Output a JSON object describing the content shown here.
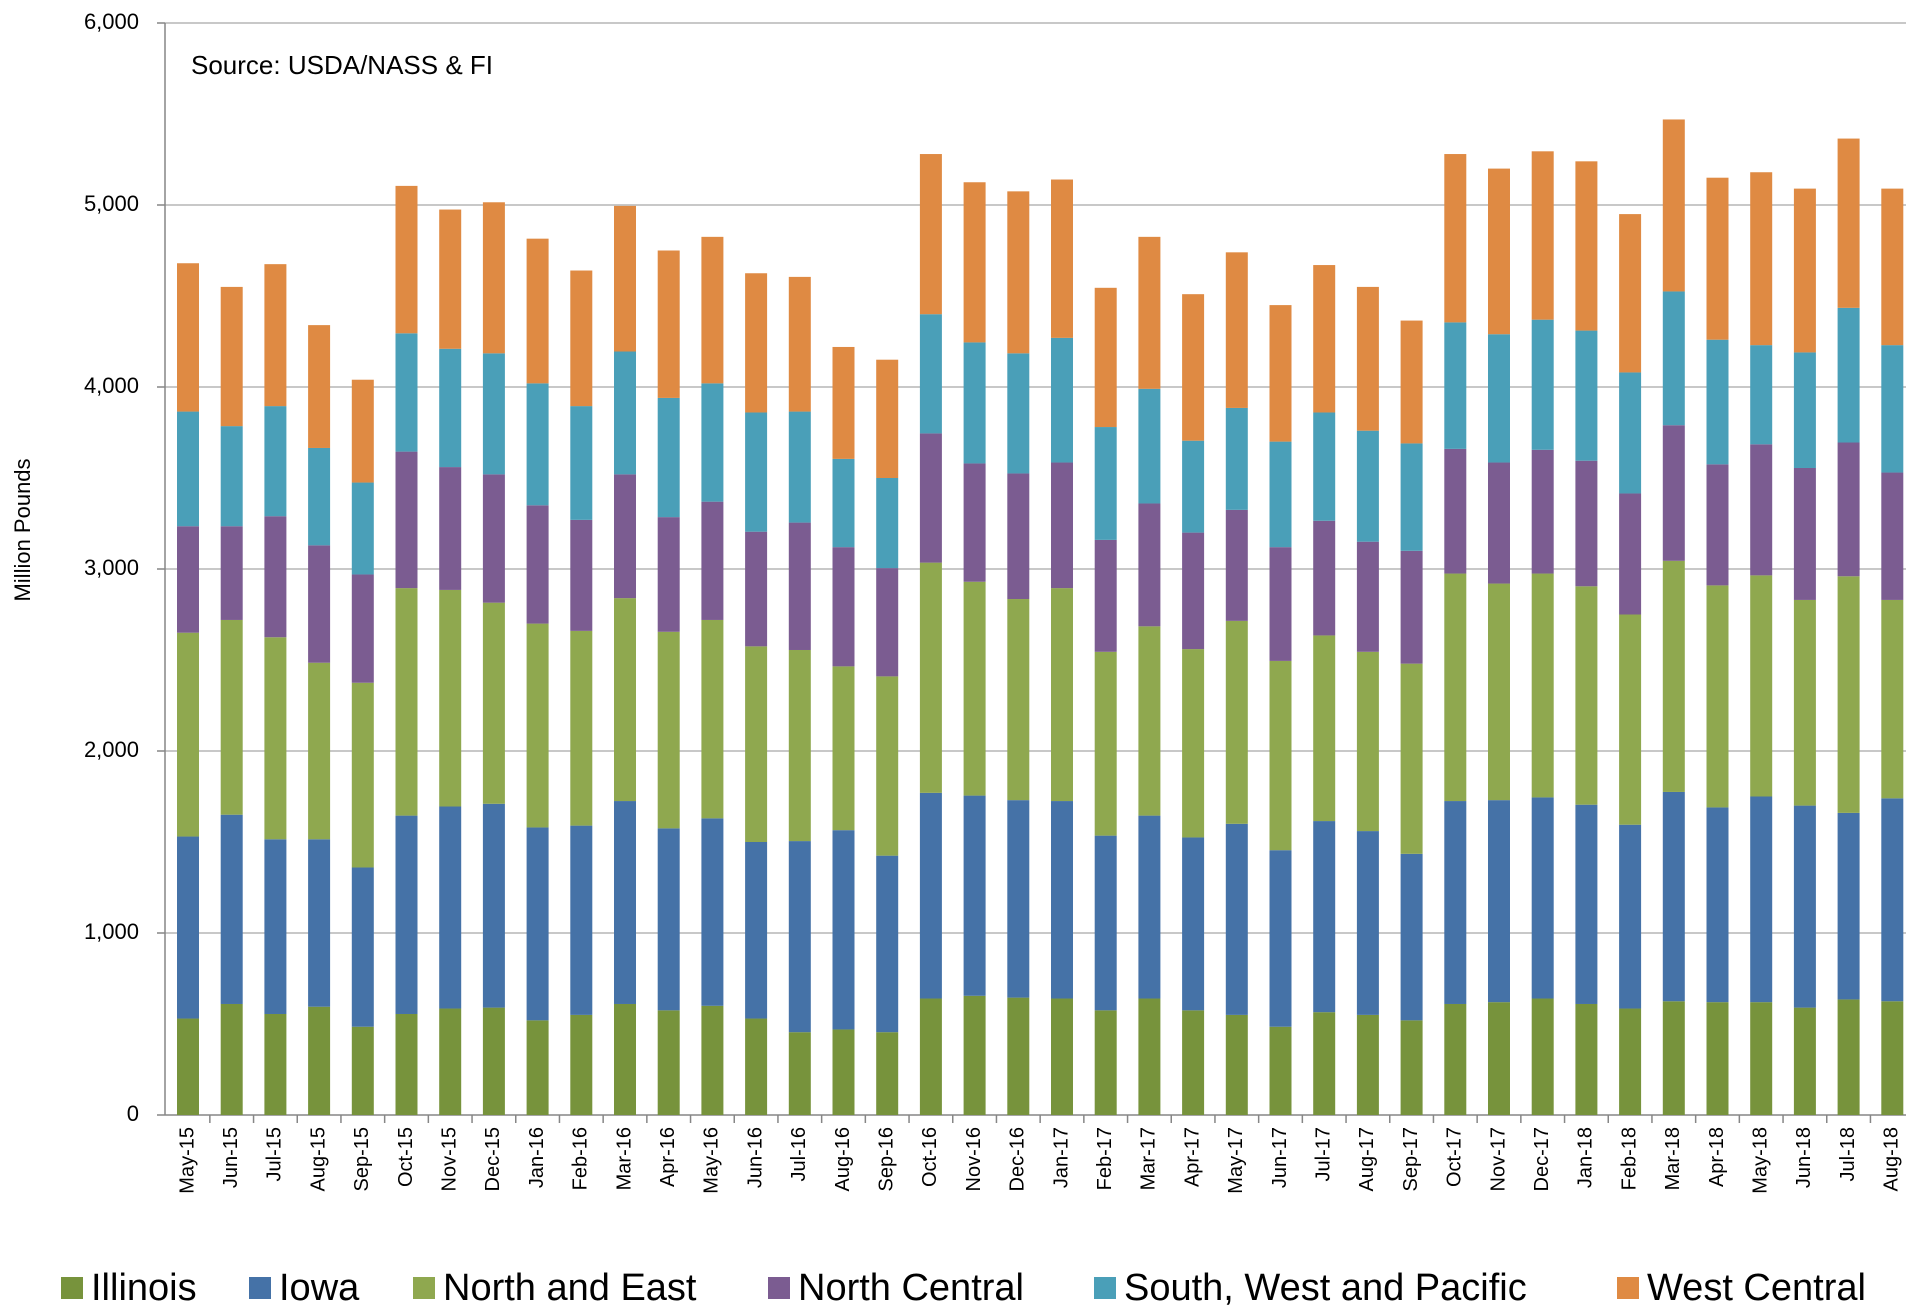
{
  "chart_data": {
    "type": "stacked_bar",
    "annotation": "Source: USDA/NASS & FI",
    "y_label": "Million Pounds",
    "categories": [
      "May-15",
      "Jun-15",
      "Jul-15",
      "Aug-15",
      "Sep-15",
      "Oct-15",
      "Nov-15",
      "Dec-15",
      "Jan-16",
      "Feb-16",
      "Mar-16",
      "Apr-16",
      "May-16",
      "Jun-16",
      "Jul-16",
      "Aug-16",
      "Sep-16",
      "Oct-16",
      "Nov-16",
      "Dec-16",
      "Jan-17",
      "Feb-17",
      "Mar-17",
      "Apr-17",
      "May-17",
      "Jun-17",
      "Jul-17",
      "Aug-17",
      "Sep-17",
      "Oct-17",
      "Nov-17",
      "Dec-17",
      "Jan-18",
      "Feb-18",
      "Mar-18",
      "Apr-18",
      "May-18",
      "Jun-18",
      "Jul-18",
      "Aug-18"
    ],
    "series": [
      {
        "name": "Illinois",
        "color": "#77933c",
        "values": [
          530,
          610,
          555,
          595,
          485,
          555,
          585,
          590,
          520,
          550,
          610,
          575,
          600,
          530,
          455,
          470,
          455,
          640,
          655,
          645,
          640,
          575,
          640,
          575,
          550,
          485,
          565,
          550,
          520,
          610,
          620,
          640,
          610,
          585,
          625,
          620,
          620,
          590,
          635,
          625
        ]
      },
      {
        "name": "Iowa",
        "color": "#4572a7",
        "values": [
          1000,
          1040,
          960,
          920,
          875,
          1090,
          1110,
          1120,
          1060,
          1040,
          1115,
          1000,
          1030,
          970,
          1050,
          1095,
          970,
          1130,
          1100,
          1085,
          1085,
          960,
          1005,
          950,
          1050,
          970,
          1050,
          1010,
          915,
          1115,
          1110,
          1105,
          1095,
          1010,
          1150,
          1070,
          1130,
          1110,
          1025,
          1115
        ]
      },
      {
        "name": "North and East",
        "color": "#8fa84f",
        "values": [
          1120,
          1070,
          1110,
          970,
          1015,
          1250,
          1190,
          1105,
          1120,
          1070,
          1115,
          1080,
          1090,
          1075,
          1050,
          900,
          985,
          1265,
          1175,
          1105,
          1170,
          1010,
          1040,
          1035,
          1115,
          1040,
          1020,
          985,
          1045,
          1250,
          1190,
          1230,
          1200,
          1155,
          1270,
          1220,
          1215,
          1130,
          1300,
          1090
        ]
      },
      {
        "name": "North Central",
        "color": "#7b5c91",
        "values": [
          585,
          515,
          665,
          645,
          595,
          750,
          675,
          705,
          650,
          610,
          680,
          630,
          650,
          630,
          700,
          655,
          595,
          710,
          650,
          690,
          690,
          615,
          675,
          640,
          610,
          625,
          630,
          605,
          620,
          685,
          665,
          680,
          690,
          665,
          745,
          665,
          720,
          725,
          735,
          700
        ]
      },
      {
        "name": "South, West and Pacific",
        "color": "#4a9fb8",
        "values": [
          630,
          550,
          605,
          535,
          505,
          650,
          650,
          665,
          670,
          625,
          675,
          655,
          650,
          655,
          610,
          485,
          495,
          655,
          665,
          660,
          685,
          620,
          630,
          505,
          560,
          580,
          595,
          610,
          590,
          695,
          705,
          715,
          715,
          665,
          735,
          685,
          545,
          635,
          740,
          700
        ]
      },
      {
        "name": "West Central",
        "color": "#df8a43",
        "values": [
          815,
          765,
          780,
          675,
          565,
          810,
          765,
          830,
          795,
          745,
          800,
          810,
          805,
          765,
          740,
          615,
          650,
          880,
          880,
          890,
          870,
          765,
          835,
          805,
          855,
          750,
          810,
          790,
          675,
          925,
          910,
          925,
          930,
          870,
          945,
          890,
          950,
          900,
          930,
          860
        ]
      }
    ],
    "ylim": [
      0,
      6000
    ],
    "yticks": [
      0,
      {
        "value": 1000,
        "label": "1,000"
      },
      {
        "value": 2000,
        "label": "2,000"
      },
      {
        "value": 3000,
        "label": "3,000"
      },
      {
        "value": 4000,
        "label": "4,000"
      },
      {
        "value": 5000,
        "label": "5,000"
      },
      {
        "value": 6000,
        "label": "6,000"
      }
    ],
    "grid": true
  }
}
